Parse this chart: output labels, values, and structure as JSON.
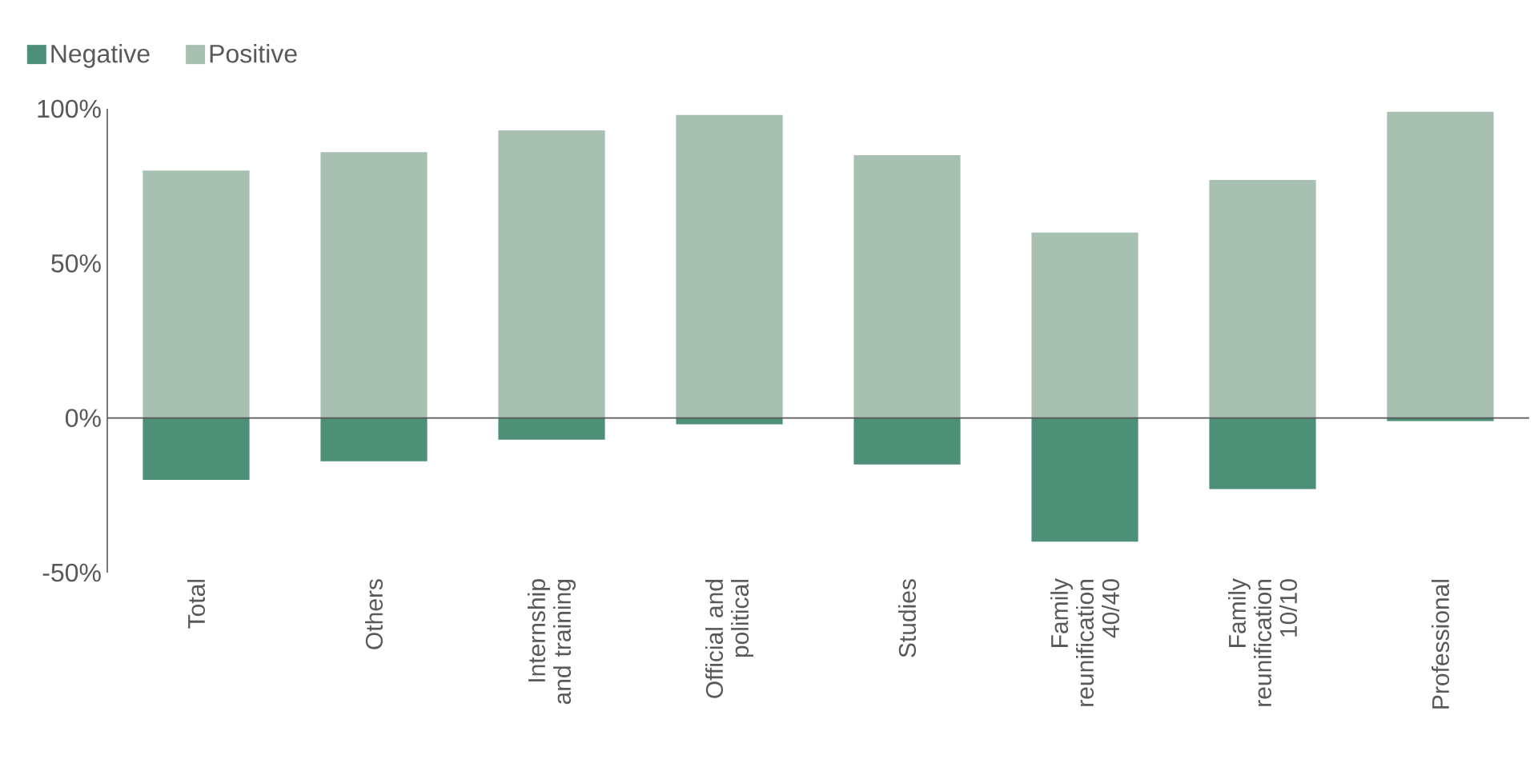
{
  "chart_data": {
    "type": "bar",
    "stacked": true,
    "legend": "top left",
    "categories": [
      "Total",
      "Others",
      "Internship and training",
      "Official and political",
      "Studies",
      "Family reunification 40/40",
      "Family reunification 10/10",
      "Professional"
    ],
    "series": [
      {
        "name": "Negative",
        "color": "#4e8f77",
        "values": [
          -20,
          -14,
          -7,
          -2,
          -15,
          -40,
          -23,
          -1
        ]
      },
      {
        "name": "Positive",
        "color": "#a8c0b2",
        "values": [
          80,
          86,
          93,
          98,
          85,
          60,
          77,
          99
        ]
      }
    ],
    "ylim": [
      -50,
      100
    ],
    "yticks": [
      {
        "value": -50,
        "label": "-50%"
      },
      {
        "value": 0,
        "label": "0%"
      },
      {
        "value": 50,
        "label": "50%"
      },
      {
        "value": 100,
        "label": "100%"
      }
    ]
  }
}
